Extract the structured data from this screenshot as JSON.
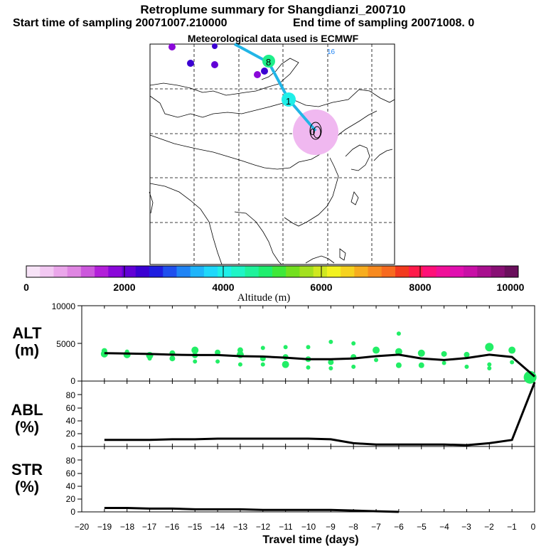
{
  "header": {
    "title": "Retroplume summary for Shangdianzi_200710",
    "start": "Start time of sampling 20071007.210000",
    "end": "End time of sampling 20071008.    0",
    "met": "Meteorological data used is ECMWF"
  },
  "map": {
    "labels": [
      {
        "text": "8",
        "kind": "node"
      },
      {
        "text": "1",
        "kind": "node"
      },
      {
        "text": "0",
        "kind": "node"
      },
      {
        "text": "16",
        "kind": "small"
      }
    ],
    "colors": {
      "land": "#ffffff",
      "track": "#22b5e6",
      "plume_near": "#f0b8f0"
    }
  },
  "colorbar": {
    "ticks": [
      "0",
      "2000",
      "4000",
      "6000",
      "8000",
      "10000"
    ],
    "label": "Altitude (m)",
    "colors": [
      "#f7e3f7",
      "#f2c8f2",
      "#eaa6ea",
      "#df86e2",
      "#cc58dc",
      "#b21fd9",
      "#8a08d9",
      "#6200d6",
      "#3b00d2",
      "#1f1ee0",
      "#1f4fee",
      "#1f84f5",
      "#1fb4fa",
      "#1fd8fb",
      "#1fefe8",
      "#1ff5c6",
      "#1ff29b",
      "#1fee6e",
      "#3fe83a",
      "#73e01f",
      "#a3e01f",
      "#cfe81f",
      "#f2f21f",
      "#f6d21f",
      "#f7ad1f",
      "#f78a1f",
      "#f76a1f",
      "#f23a1f",
      "#ff1a4a",
      "#ff0f78",
      "#f00f98",
      "#e00fb0",
      "#c80fa6",
      "#a80f8e",
      "#880f74",
      "#6a0f5c"
    ]
  },
  "panels": {
    "alt": {
      "label1": "ALT",
      "label2": "(m)",
      "ticks": [
        "0",
        "5000",
        "10000"
      ]
    },
    "abl": {
      "label1": "ABL",
      "label2": "(%)",
      "ticks": [
        "0",
        "20",
        "40",
        "60",
        "80"
      ]
    },
    "str": {
      "label1": "STR",
      "label2": "(%)",
      "ticks": [
        "0",
        "20",
        "40",
        "60",
        "80"
      ]
    }
  },
  "xaxis": {
    "title": "Travel time (days)",
    "ticks": [
      "−20",
      "−19",
      "−18",
      "−17",
      "−16",
      "−15",
      "−14",
      "−13",
      "−12",
      "−11",
      "−10",
      "−9",
      "−8",
      "−7",
      "−6",
      "−5",
      "−4",
      "−3",
      "−2",
      "−1",
      "0"
    ]
  },
  "chart_data": [
    {
      "type": "line",
      "title": "ALT",
      "xlabel": "Travel time (days)",
      "ylabel": "Altitude (m)",
      "xlim": [
        -20,
        0
      ],
      "ylim": [
        0,
        10000
      ],
      "x": [
        -19,
        -18,
        -17,
        -16,
        -15,
        -14,
        -13,
        -12,
        -11,
        -10,
        -9,
        -8,
        -7,
        -6,
        -5,
        -4,
        -3,
        -2,
        -1,
        0
      ],
      "values": [
        3700,
        3650,
        3600,
        3500,
        3450,
        3450,
        3300,
        3250,
        3100,
        2900,
        2900,
        3000,
        3300,
        3500,
        3000,
        2800,
        3050,
        3500,
        3200,
        600
      ],
      "scatter": [
        {
          "x": -19,
          "y": 3600,
          "r": 5
        },
        {
          "x": -19,
          "y": 4000,
          "r": 4
        },
        {
          "x": -18,
          "y": 3500,
          "r": 5
        },
        {
          "x": -18,
          "y": 3900,
          "r": 3
        },
        {
          "x": -17,
          "y": 3400,
          "r": 5
        },
        {
          "x": -17,
          "y": 3000,
          "r": 3
        },
        {
          "x": -16,
          "y": 3700,
          "r": 4
        },
        {
          "x": -16,
          "y": 3000,
          "r": 4
        },
        {
          "x": -15,
          "y": 3400,
          "r": 4
        },
        {
          "x": -15,
          "y": 4100,
          "r": 5
        },
        {
          "x": -15,
          "y": 2600,
          "r": 3
        },
        {
          "x": -14,
          "y": 3800,
          "r": 4
        },
        {
          "x": -14,
          "y": 2600,
          "r": 3
        },
        {
          "x": -13,
          "y": 3500,
          "r": 5
        },
        {
          "x": -13,
          "y": 4100,
          "r": 4
        },
        {
          "x": -13,
          "y": 2200,
          "r": 3
        },
        {
          "x": -12,
          "y": 3000,
          "r": 4
        },
        {
          "x": -12,
          "y": 4400,
          "r": 3
        },
        {
          "x": -12,
          "y": 2200,
          "r": 3
        },
        {
          "x": -11,
          "y": 3200,
          "r": 4
        },
        {
          "x": -11,
          "y": 2200,
          "r": 5
        },
        {
          "x": -11,
          "y": 4500,
          "r": 3
        },
        {
          "x": -10,
          "y": 2900,
          "r": 4
        },
        {
          "x": -10,
          "y": 4500,
          "r": 3
        },
        {
          "x": -10,
          "y": 1800,
          "r": 3
        },
        {
          "x": -9,
          "y": 2500,
          "r": 4
        },
        {
          "x": -9,
          "y": 5200,
          "r": 3
        },
        {
          "x": -9,
          "y": 1700,
          "r": 3
        },
        {
          "x": -8,
          "y": 3200,
          "r": 4
        },
        {
          "x": -8,
          "y": 5000,
          "r": 3
        },
        {
          "x": -8,
          "y": 1900,
          "r": 3
        },
        {
          "x": -7,
          "y": 4100,
          "r": 5
        },
        {
          "x": -7,
          "y": 2800,
          "r": 3
        },
        {
          "x": -6,
          "y": 3900,
          "r": 5
        },
        {
          "x": -6,
          "y": 6300,
          "r": 3
        },
        {
          "x": -6,
          "y": 2100,
          "r": 4
        },
        {
          "x": -5,
          "y": 3700,
          "r": 5
        },
        {
          "x": -5,
          "y": 2100,
          "r": 4
        },
        {
          "x": -4,
          "y": 3600,
          "r": 4
        },
        {
          "x": -4,
          "y": 2400,
          "r": 3
        },
        {
          "x": -3,
          "y": 3500,
          "r": 4
        },
        {
          "x": -3,
          "y": 1900,
          "r": 3
        },
        {
          "x": -2,
          "y": 4500,
          "r": 6
        },
        {
          "x": -2,
          "y": 2200,
          "r": 3
        },
        {
          "x": -2,
          "y": 1700,
          "r": 3
        },
        {
          "x": -1,
          "y": 4100,
          "r": 5
        },
        {
          "x": -1,
          "y": 2500,
          "r": 3
        },
        {
          "x": -0.2,
          "y": 500,
          "r": 9
        }
      ]
    },
    {
      "type": "line",
      "title": "ABL",
      "xlabel": "Travel time (days)",
      "ylabel": "ABL (%)",
      "xlim": [
        -20,
        0
      ],
      "ylim": [
        0,
        100
      ],
      "x": [
        -19,
        -18,
        -17,
        -16,
        -15,
        -14,
        -13,
        -12,
        -11,
        -10,
        -9,
        -8,
        -7,
        -6,
        -5,
        -4,
        -3,
        -2,
        -1,
        0
      ],
      "values": [
        10,
        10,
        10,
        11,
        11,
        12,
        12,
        12,
        12,
        12,
        11,
        5,
        3,
        3,
        3,
        3,
        2,
        5,
        10,
        98
      ]
    },
    {
      "type": "line",
      "title": "STR",
      "xlabel": "Travel time (days)",
      "ylabel": "STR (%)",
      "xlim": [
        -20,
        0
      ],
      "ylim": [
        0,
        100
      ],
      "x": [
        -19,
        -18,
        -17,
        -16,
        -15,
        -14,
        -13,
        -12,
        -11,
        -10,
        -9,
        -8,
        -7,
        -6
      ],
      "values": [
        6,
        6,
        5,
        5,
        4,
        4,
        4,
        3,
        3,
        3,
        3,
        2,
        1,
        0
      ]
    }
  ]
}
